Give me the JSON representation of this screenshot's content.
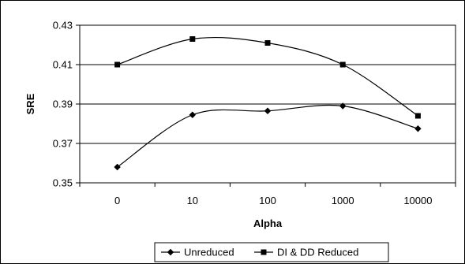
{
  "chart_data": {
    "type": "line",
    "title": "",
    "xlabel": "Alpha",
    "ylabel": "SRE",
    "categories": [
      "0",
      "10",
      "100",
      "1000",
      "10000"
    ],
    "ylim": [
      0.35,
      0.43
    ],
    "yticks": [
      "0.35",
      "0.37",
      "0.39",
      "0.41",
      "0.43"
    ],
    "grid": "horizontal",
    "legend": "bottom",
    "smooth": true,
    "series": [
      {
        "name": "Unreduced",
        "values": [
          0.358,
          0.3845,
          0.3865,
          0.389,
          0.3775
        ],
        "marker": "diamond",
        "color": "#000000"
      },
      {
        "name": "DI & DD Reduced",
        "values": [
          0.41,
          0.423,
          0.421,
          0.41,
          0.384
        ],
        "marker": "square",
        "color": "#000000"
      }
    ]
  }
}
